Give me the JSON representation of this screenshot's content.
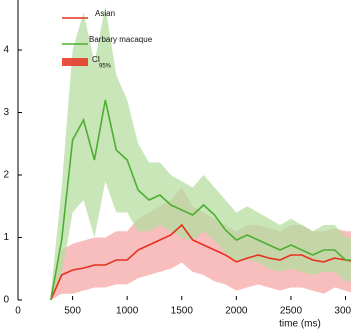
{
  "chart_data": {
    "type": "line",
    "x_label": "time (ms)",
    "ci_label": "CI",
    "ci_subscript": "95%",
    "x": [
      300,
      400,
      500,
      600,
      700,
      800,
      900,
      1000,
      1100,
      1200,
      1300,
      1400,
      1500,
      1600,
      1700,
      1800,
      1900,
      2000,
      2100,
      2200,
      2300,
      2400,
      2500,
      2600,
      2700,
      2800,
      2900,
      3000,
      3100
    ],
    "series": [
      {
        "name": "Asian",
        "color": "#e8301e",
        "band_color": "#f6a7a7",
        "values": [
          0,
          0.4,
          0.48,
          0.51,
          0.56,
          0.56,
          0.64,
          0.64,
          0.8,
          0.88,
          0.96,
          1.04,
          1.2,
          0.96,
          0.88,
          0.8,
          0.72,
          0.61,
          0.67,
          0.72,
          0.67,
          0.64,
          0.72,
          0.72,
          0.64,
          0.61,
          0.67,
          0.64,
          0.61
        ],
        "upper": [
          0.05,
          0.8,
          0.9,
          0.95,
          1.0,
          1.0,
          1.1,
          1.1,
          1.3,
          1.4,
          1.5,
          1.6,
          1.8,
          1.5,
          1.4,
          1.3,
          1.2,
          1.1,
          1.2,
          1.2,
          1.15,
          1.1,
          1.2,
          1.2,
          1.1,
          1.1,
          1.15,
          1.1,
          1.1
        ],
        "lower": [
          0,
          0.1,
          0.1,
          0.15,
          0.2,
          0.2,
          0.25,
          0.25,
          0.35,
          0.4,
          0.45,
          0.5,
          0.6,
          0.45,
          0.4,
          0.3,
          0.25,
          0.15,
          0.2,
          0.25,
          0.2,
          0.15,
          0.2,
          0.2,
          0.15,
          0.1,
          0.2,
          0.15,
          0.1
        ]
      },
      {
        "name": "Barbary macaque",
        "color": "#4caf32",
        "band_color": "#b6dea0",
        "values": [
          0,
          0.96,
          2.56,
          2.88,
          2.24,
          3.2,
          2.4,
          2.24,
          1.76,
          1.6,
          1.68,
          1.52,
          1.44,
          1.36,
          1.52,
          1.36,
          1.12,
          0.96,
          1.04,
          0.96,
          0.88,
          0.8,
          0.88,
          0.8,
          0.72,
          0.8,
          0.8,
          0.64,
          0.64
        ],
        "upper": [
          0.1,
          1.8,
          4.0,
          4.6,
          3.8,
          4.7,
          3.6,
          3.2,
          2.5,
          2.2,
          2.2,
          2.0,
          1.9,
          1.8,
          2.0,
          1.8,
          1.6,
          1.4,
          1.5,
          1.4,
          1.3,
          1.2,
          1.3,
          1.2,
          1.1,
          1.2,
          1.2,
          1.0,
          1.0
        ],
        "lower": [
          0,
          0.4,
          1.4,
          1.6,
          1.0,
          1.9,
          1.4,
          1.4,
          1.1,
          1.1,
          1.2,
          1.1,
          1.0,
          0.95,
          1.1,
          0.95,
          0.75,
          0.6,
          0.65,
          0.6,
          0.5,
          0.45,
          0.5,
          0.45,
          0.4,
          0.45,
          0.45,
          0.3,
          0.3
        ]
      }
    ],
    "xlim": [
      0,
      3050
    ],
    "xticks": [
      0,
      500,
      1000,
      1500,
      2000,
      2500,
      3000
    ],
    "ylim": [
      0,
      4.8
    ],
    "yticks": [
      0,
      1,
      2,
      3,
      4
    ]
  }
}
